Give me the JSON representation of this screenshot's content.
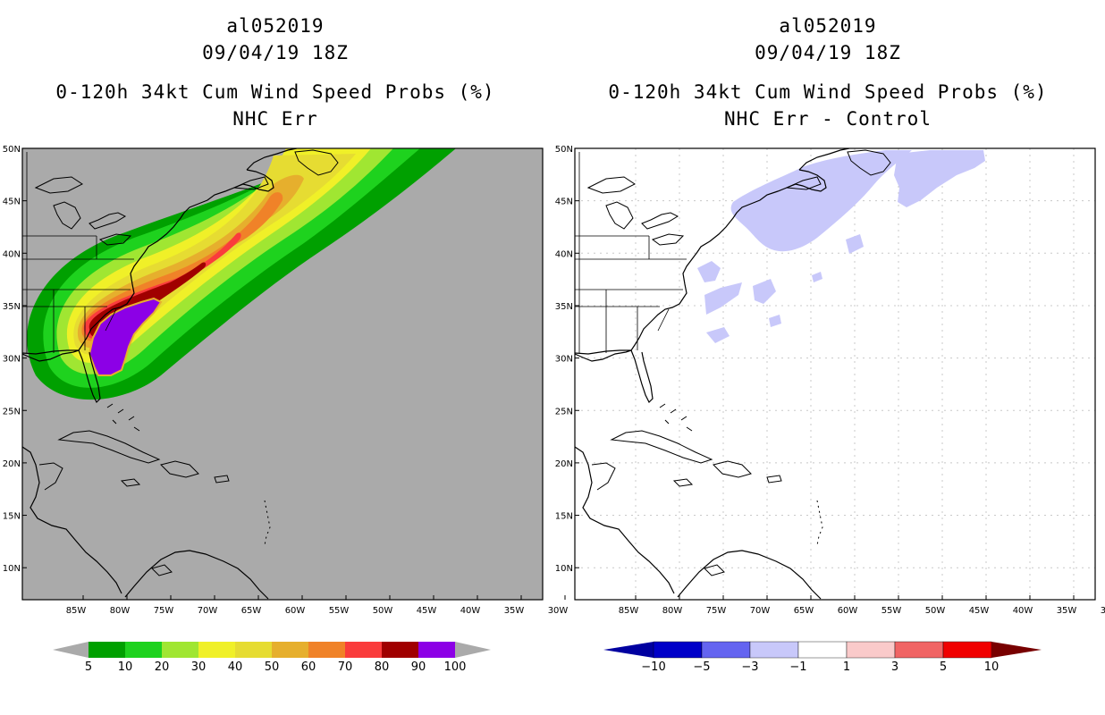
{
  "left_panel": {
    "storm_id": "al052019",
    "datetime": "09/04/19 18Z",
    "product": "0-120h 34kt Cum Wind Speed Probs (%)",
    "subtitle": "NHC Err"
  },
  "right_panel": {
    "storm_id": "al052019",
    "datetime": "09/04/19 18Z",
    "product": "0-120h 34kt Cum Wind Speed Probs (%)",
    "subtitle": "NHC Err - Control"
  },
  "axes": {
    "lat_labels": [
      "50N",
      "45N",
      "40N",
      "35N",
      "30N",
      "25N",
      "20N",
      "15N",
      "10N"
    ],
    "lon_labels": [
      "85W",
      "80W",
      "75W",
      "70W",
      "65W",
      "60W",
      "55W",
      "50W",
      "45W",
      "40W",
      "35W",
      "30W"
    ]
  },
  "left_colorbar": {
    "labels": [
      "5",
      "10",
      "20",
      "30",
      "40",
      "50",
      "60",
      "70",
      "80",
      "90",
      "100"
    ],
    "colors": [
      "#00a000",
      "#1ed21e",
      "#a0e632",
      "#f0f028",
      "#e6dc32",
      "#e6af2d",
      "#f08228",
      "#fa3c3c",
      "#a00000",
      "#8c00e6"
    ],
    "end_color": "#aaaaaa"
  },
  "right_colorbar": {
    "labels": [
      "−10",
      "−5",
      "−3",
      "−1",
      "1",
      "3",
      "5",
      "10"
    ],
    "colors": [
      "#0000c8",
      "#6464f0",
      "#c8c8fa",
      "#ffffff",
      "#facaca",
      "#f06464",
      "#f00000"
    ],
    "low_end_color": "#0000a0",
    "high_end_color": "#780000"
  },
  "colors": {
    "ocean_left": "#aaaaaa",
    "ocean_right": "#ffffff",
    "grid": "#c8c8c8"
  }
}
